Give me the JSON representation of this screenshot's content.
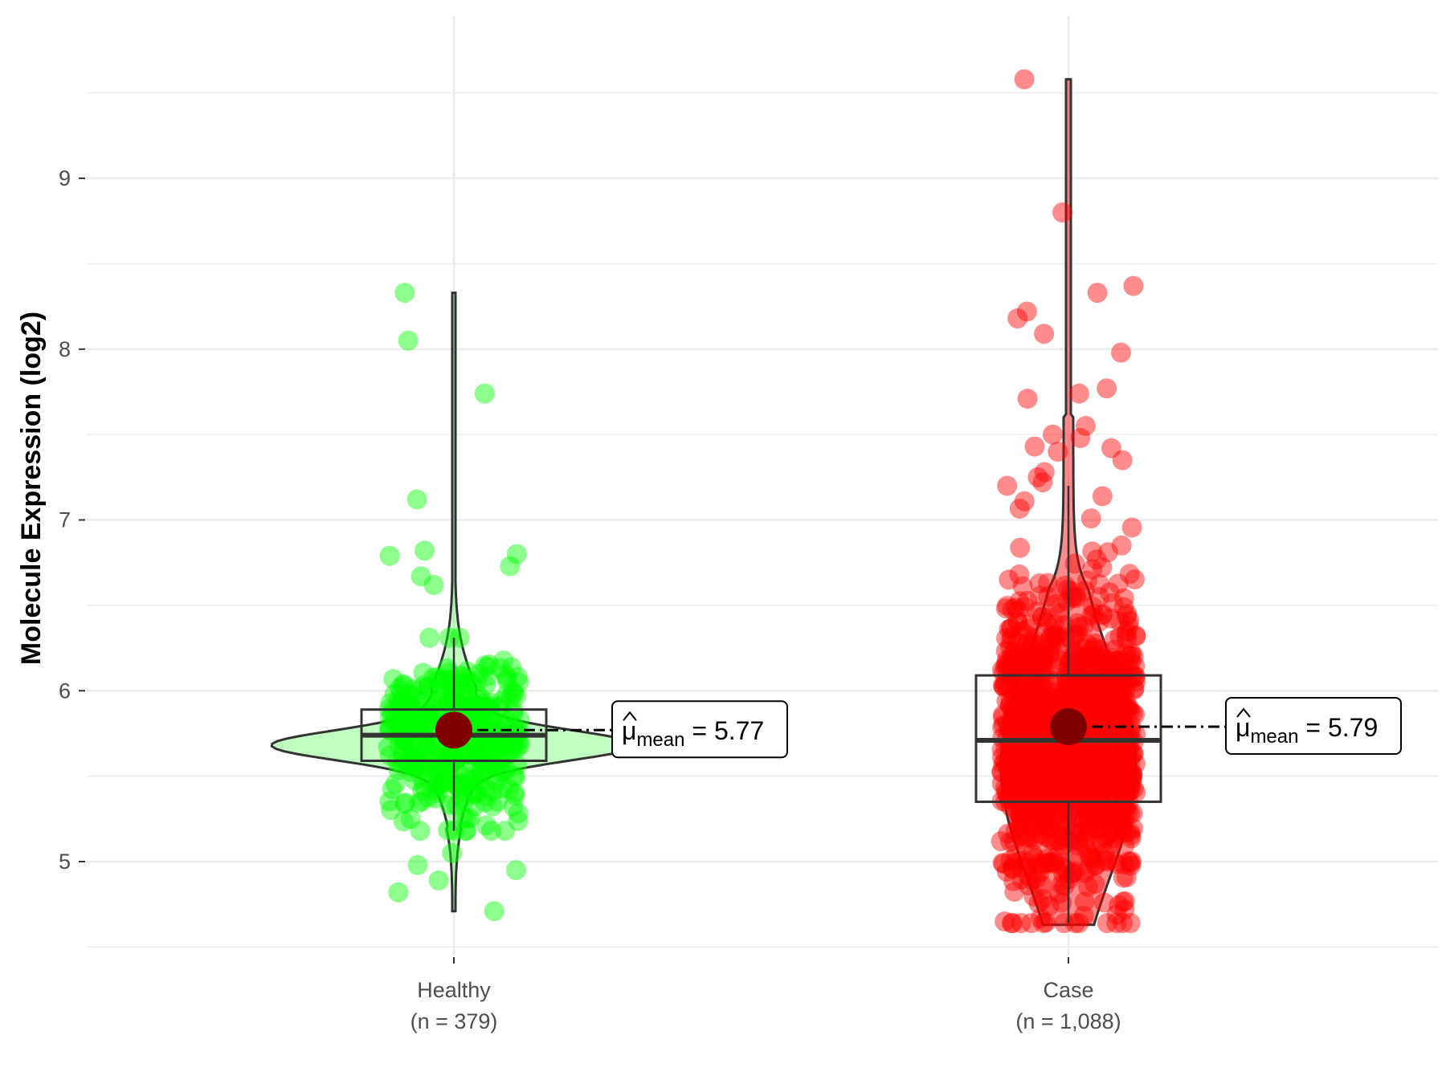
{
  "chart_data": {
    "type": "violin",
    "title": "",
    "ylabel": "Molecule Expression (log2)",
    "xlabel": "",
    "ylim": [
      4.45,
      9.95
    ],
    "yticks": [
      5,
      6,
      7,
      8,
      9
    ],
    "grid": true,
    "legend": "none",
    "mean_symbol": "μ",
    "mean_subscript": "mean",
    "groups": [
      {
        "name": "Healthy",
        "n_label": "(n = 379)",
        "color": "#00ff00",
        "mean": 5.77,
        "mean_label": "5.77",
        "median": 5.74,
        "q1": 5.59,
        "q3": 5.89,
        "whisker_low": 5.18,
        "whisker_high": 6.31,
        "min": 4.71,
        "max": 8.33,
        "n": 379,
        "outliers": [
          8.33,
          8.05,
          7.74,
          7.12,
          6.82,
          6.8,
          6.79,
          6.73,
          6.67,
          6.62,
          4.71,
          4.82,
          4.89,
          4.95,
          4.98,
          5.05
        ]
      },
      {
        "name": "Case",
        "n_label": "(n = 1,088)",
        "color": "#ff0000",
        "mean": 5.79,
        "mean_label": "5.79",
        "median": 5.71,
        "q1": 5.35,
        "q3": 6.09,
        "whisker_low": 4.64,
        "whisker_high": 7.2,
        "min": 4.63,
        "max": 9.58,
        "n": 1088,
        "outliers": [
          9.58,
          8.8,
          8.37,
          8.33,
          8.22,
          8.18,
          8.09,
          7.98,
          7.77,
          7.74,
          7.71,
          7.55,
          7.5,
          7.48,
          7.43,
          7.42,
          7.4,
          7.35,
          7.28,
          7.25,
          7.22
        ]
      }
    ]
  },
  "colors": {
    "grid": "#ebebeb",
    "box": "#333333",
    "mean_point": "#800000",
    "violin_outline": "#333333"
  }
}
